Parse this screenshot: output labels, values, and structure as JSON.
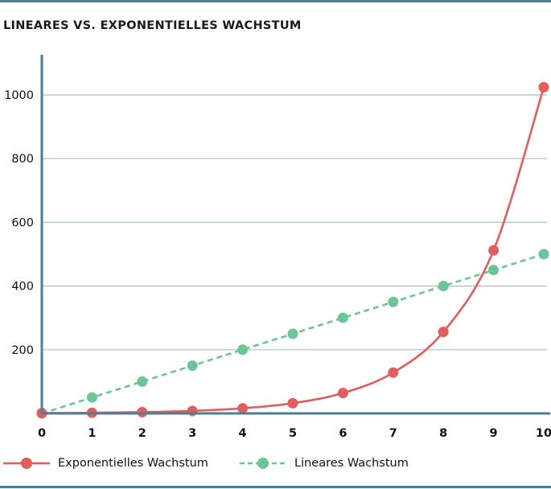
{
  "chart_data": {
    "type": "line",
    "title": "LINEARES VS. EXPONENTIELLES WACHSTUM",
    "xlabel": "",
    "ylabel": "",
    "x": [
      0,
      1,
      2,
      3,
      4,
      5,
      6,
      7,
      8,
      9,
      10
    ],
    "xlim": [
      0,
      10
    ],
    "ylim": [
      0,
      1050
    ],
    "yticks": [
      200,
      400,
      600,
      800,
      1000
    ],
    "xticks": [
      0,
      1,
      2,
      3,
      4,
      5,
      6,
      7,
      8,
      9,
      10
    ],
    "grid": "horizontal",
    "legend_position": "bottom-left",
    "series": [
      {
        "name": "Exponentielles Wachstum",
        "values": [
          1,
          2,
          4,
          8,
          16,
          32,
          64,
          128,
          256,
          512,
          1024
        ],
        "color": "#e35d5d",
        "line_style": "solid",
        "smooth": true
      },
      {
        "name": "Lineares Wachstum",
        "values": [
          0,
          50,
          100,
          150,
          200,
          250,
          300,
          350,
          400,
          450,
          500
        ],
        "color": "#6cc596",
        "line_style": "dashed",
        "smooth": false
      }
    ],
    "colors": {
      "axis": "#4f7d98",
      "grid": "#a9bfcd",
      "rule": "#4f7d98"
    }
  }
}
